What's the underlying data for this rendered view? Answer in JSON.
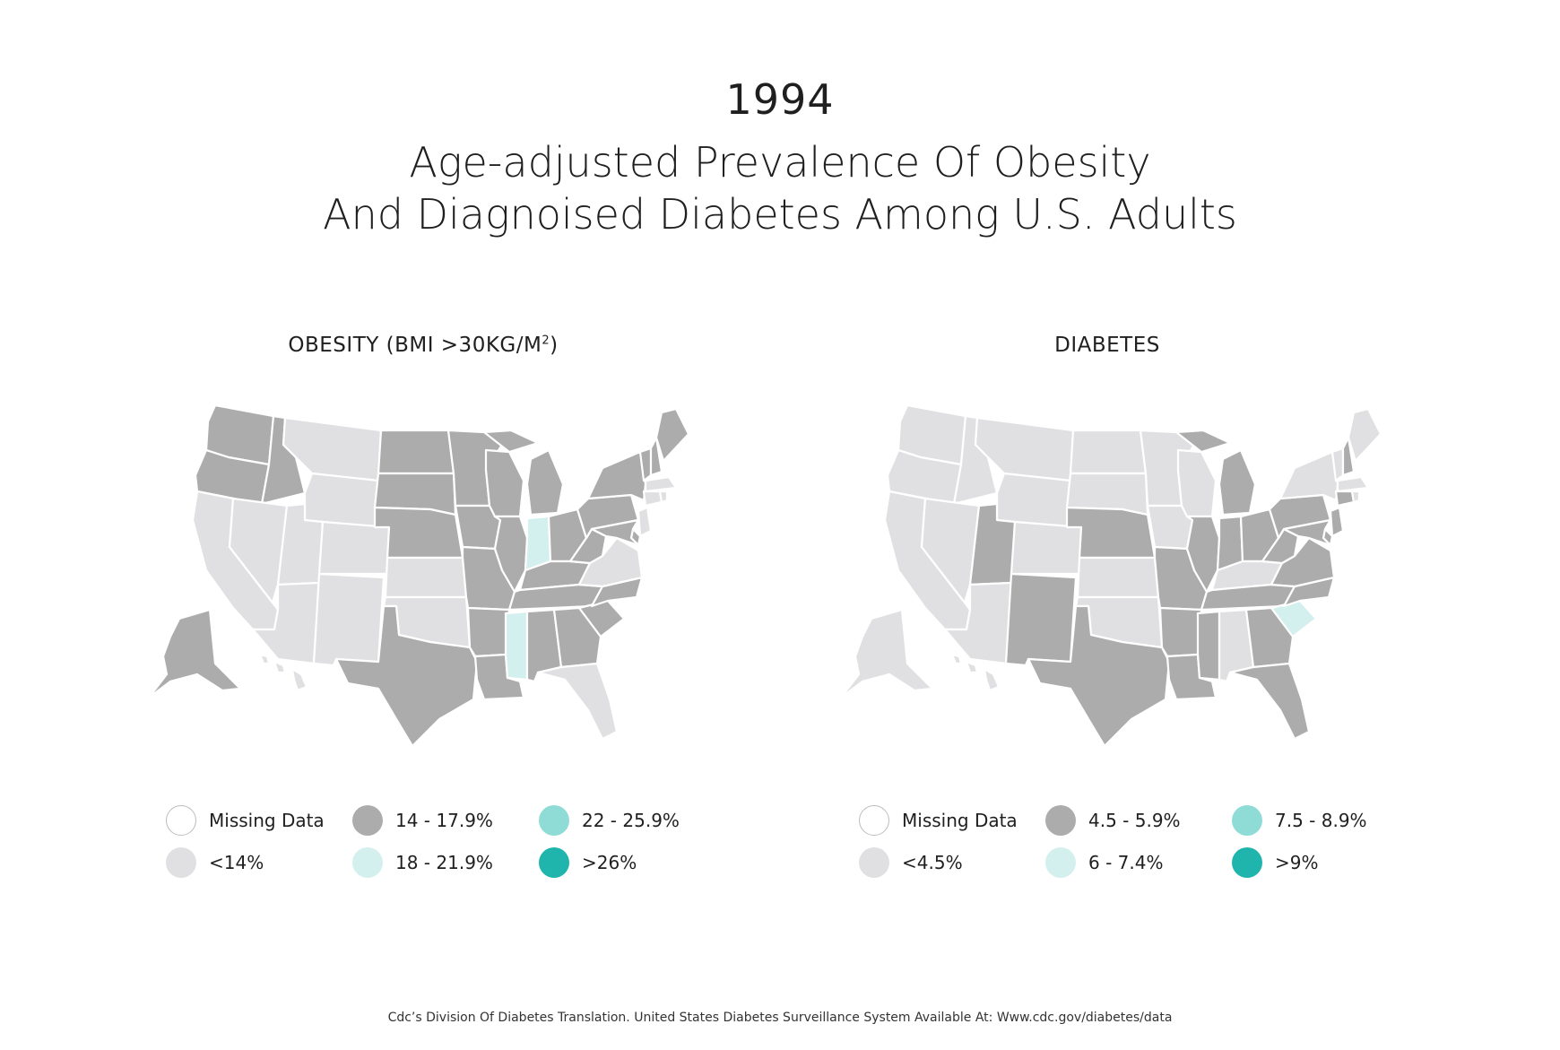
{
  "year": "1994",
  "title_line1": "Age-adjusted Prevalence Of Obesity",
  "title_line2": "And Diagnoised Diabetes Among U.S. Adults",
  "obesity": {
    "title": "OBESITY (BMI >30KG/M",
    "title_sup": "2",
    "title_close": ")",
    "legend": [
      {
        "label": "Missing Data",
        "color": "#ffffff"
      },
      {
        "label": "<14%",
        "color": "#e0e0e2"
      },
      {
        "label": "14 - 17.9%",
        "color": "#acacac"
      },
      {
        "label": "18 - 21.9%",
        "color": "#d3f0ee"
      },
      {
        "label": "22 - 25.9%",
        "color": "#8fdcd6"
      },
      {
        "label": ">26%",
        "color": "#1fb5ad"
      }
    ]
  },
  "diabetes": {
    "title": "DIABETES",
    "legend": [
      {
        "label": "Missing Data",
        "color": "#ffffff"
      },
      {
        "label": "<4.5%",
        "color": "#e0e0e2"
      },
      {
        "label": "4.5 - 5.9%",
        "color": "#acacac"
      },
      {
        "label": "6 - 7.4%",
        "color": "#d3f0ee"
      },
      {
        "label": "7.5 - 8.9%",
        "color": "#8fdcd6"
      },
      {
        "label": ">9%",
        "color": "#1fb5ad"
      }
    ]
  },
  "map_data": {
    "states": [
      "WA",
      "OR",
      "CA",
      "ID",
      "NV",
      "MT",
      "WY",
      "UT",
      "AZ",
      "CO",
      "NM",
      "ND",
      "SD",
      "NE",
      "KS",
      "OK",
      "TX",
      "MN",
      "IA",
      "MO",
      "AR",
      "LA",
      "WI",
      "IL",
      "MI",
      "IN",
      "OH",
      "KY",
      "TN",
      "MS",
      "AL",
      "GA",
      "FL",
      "SC",
      "NC",
      "VA",
      "WV",
      "PA",
      "NY",
      "VT",
      "NH",
      "ME",
      "MA",
      "CT",
      "RI",
      "NJ",
      "DE",
      "MD",
      "AK",
      "HI"
    ],
    "obesity_class": {
      "WA": 2,
      "OR": 2,
      "CA": 1,
      "ID": 2,
      "NV": 1,
      "MT": 1,
      "WY": 1,
      "UT": 1,
      "AZ": 1,
      "CO": 1,
      "NM": 1,
      "ND": 2,
      "SD": 2,
      "NE": 2,
      "KS": 1,
      "OK": 1,
      "TX": 2,
      "MN": 2,
      "IA": 2,
      "MO": 2,
      "AR": 2,
      "LA": 2,
      "WI": 2,
      "IL": 2,
      "MI": 2,
      "IN": 3,
      "OH": 2,
      "KY": 2,
      "TN": 2,
      "MS": 3,
      "AL": 2,
      "GA": 2,
      "FL": 1,
      "SC": 2,
      "NC": 2,
      "VA": 1,
      "WV": 2,
      "PA": 2,
      "NY": 2,
      "VT": 2,
      "NH": 2,
      "ME": 2,
      "MA": 1,
      "CT": 1,
      "RI": 1,
      "NJ": 1,
      "DE": 2,
      "MD": 2,
      "AK": 2,
      "HI": 1
    },
    "diabetes_class": {
      "WA": 1,
      "OR": 1,
      "CA": 1,
      "ID": 1,
      "NV": 1,
      "MT": 1,
      "WY": 1,
      "UT": 2,
      "AZ": 1,
      "CO": 1,
      "NM": 2,
      "ND": 1,
      "SD": 1,
      "NE": 2,
      "KS": 1,
      "OK": 1,
      "TX": 2,
      "MN": 1,
      "IA": 1,
      "MO": 2,
      "AR": 2,
      "LA": 2,
      "WI": 1,
      "IL": 2,
      "MI": 2,
      "IN": 2,
      "OH": 2,
      "KY": 1,
      "TN": 2,
      "MS": 2,
      "AL": 1,
      "GA": 2,
      "FL": 2,
      "SC": 3,
      "NC": 2,
      "VA": 2,
      "WV": 2,
      "PA": 2,
      "NY": 1,
      "VT": 1,
      "NH": 2,
      "ME": 1,
      "MA": 1,
      "CT": 2,
      "RI": 1,
      "NJ": 2,
      "DE": 2,
      "MD": 2,
      "AK": 1,
      "HI": 1
    }
  },
  "source": "Cdc’s Division Of Diabetes Translation. United States Diabetes Surveillance System Available At: Www.cdc.gov/diabetes/data"
}
